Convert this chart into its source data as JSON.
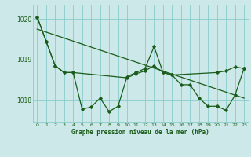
{
  "xlabel": "Graphe pression niveau de la mer (hPa)",
  "background_color": "#cce8e8",
  "plot_bg_color": "#cce8e8",
  "grid_color": "#88cccc",
  "line_color": "#1a5c1a",
  "text_color": "#1a5c1a",
  "xlim": [
    -0.5,
    23.5
  ],
  "ylim": [
    1017.45,
    1020.35
  ],
  "yticks": [
    1018,
    1019,
    1020
  ],
  "xticks": [
    0,
    1,
    2,
    3,
    4,
    5,
    6,
    7,
    8,
    9,
    10,
    11,
    12,
    13,
    14,
    15,
    16,
    17,
    18,
    19,
    20,
    21,
    22,
    23
  ],
  "series_hourly_x": [
    0,
    1,
    2,
    3,
    4,
    5,
    6,
    7,
    8,
    9,
    10,
    11,
    12,
    13,
    14,
    15,
    16,
    17,
    18,
    19,
    20,
    21,
    22,
    23
  ],
  "series_hourly_y": [
    1020.05,
    1019.45,
    1018.85,
    1018.68,
    1018.68,
    1017.78,
    1017.83,
    1018.05,
    1017.72,
    1017.85,
    1018.58,
    1018.68,
    1018.78,
    1019.32,
    1018.68,
    1018.62,
    1018.38,
    1018.38,
    1018.05,
    1017.85,
    1017.85,
    1017.75,
    1018.12,
    1018.78
  ],
  "series_smooth_x": [
    0,
    1,
    2,
    3,
    4,
    10,
    11,
    12,
    13,
    14,
    15,
    20,
    21,
    22,
    23
  ],
  "series_smooth_y": [
    1020.05,
    1019.45,
    1018.85,
    1018.68,
    1018.68,
    1018.55,
    1018.65,
    1018.72,
    1018.85,
    1018.68,
    1018.62,
    1018.68,
    1018.72,
    1018.82,
    1018.78
  ],
  "trend_x": [
    0,
    23
  ],
  "trend_y": [
    1019.75,
    1018.05
  ]
}
